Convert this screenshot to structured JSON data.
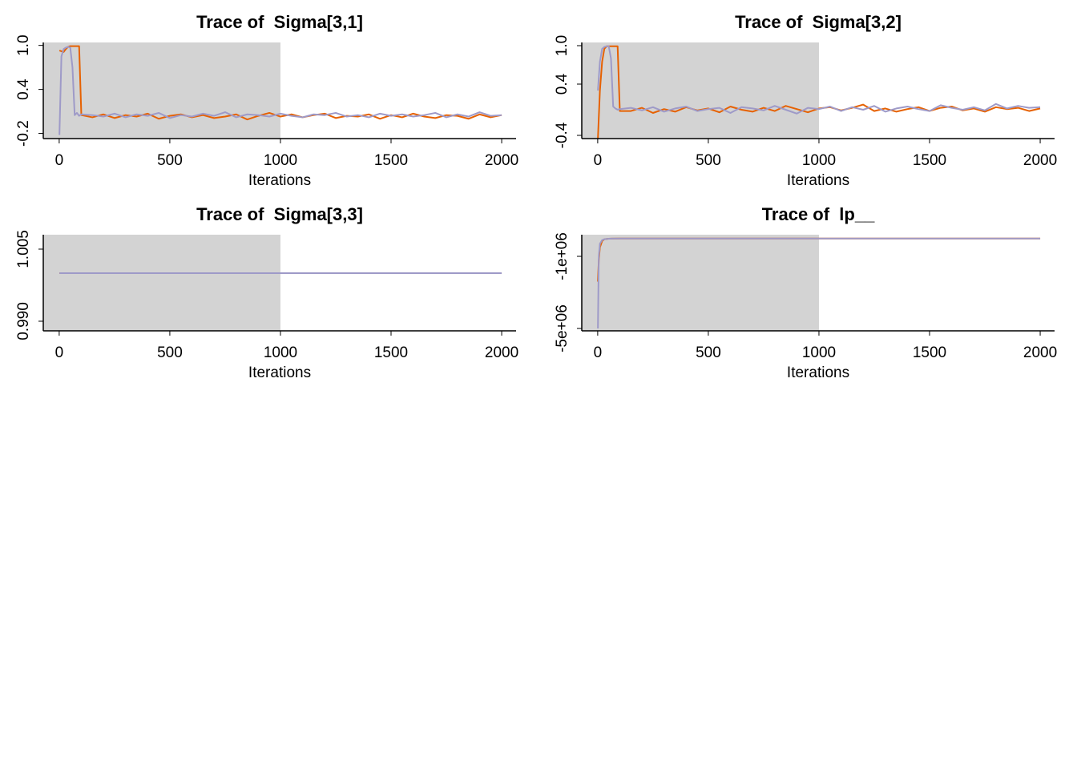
{
  "chart_data": [
    {
      "type": "line",
      "title": "Trace of  Sigma[3,1]",
      "xlabel": "Iterations",
      "x": [
        1,
        10,
        20,
        30,
        40,
        50,
        60,
        70,
        80,
        90,
        100,
        150,
        200,
        250,
        300,
        350,
        400,
        450,
        500,
        550,
        600,
        650,
        700,
        750,
        800,
        850,
        900,
        950,
        1000,
        1050,
        1100,
        1150,
        1200,
        1250,
        1300,
        1350,
        1400,
        1450,
        1500,
        1550,
        1600,
        1650,
        1700,
        1750,
        1800,
        1850,
        1900,
        1950,
        2000
      ],
      "xlim": [
        -72,
        2065
      ],
      "xticks": [
        0,
        500,
        1000,
        1500,
        2000
      ],
      "ylim": [
        -0.27,
        1.04
      ],
      "yticks": [
        -0.2,
        0.4,
        {
          "value": 1.0,
          "label": "1.0"
        }
      ],
      "warmup": 1000,
      "series": [
        {
          "color": "#e66101",
          "values": [
            0.93,
            0.92,
            0.91,
            0.95,
            0.98,
            0.99,
            0.99,
            0.99,
            0.99,
            0.99,
            0.05,
            0.02,
            0.06,
            0.01,
            0.05,
            0.03,
            0.07,
            0.0,
            0.04,
            0.06,
            0.02,
            0.05,
            0.01,
            0.03,
            0.06,
            -0.01,
            0.04,
            0.08,
            0.03,
            0.06,
            0.02,
            0.05,
            0.07,
            0.01,
            0.04,
            0.03,
            0.06,
            0.0,
            0.05,
            0.02,
            0.07,
            0.03,
            0.01,
            0.05,
            0.04,
            0.0,
            0.06,
            0.02,
            0.05
          ]
        },
        {
          "color": "#9e9ac8",
          "values": [
            -0.22,
            0.85,
            0.95,
            0.97,
            0.98,
            0.97,
            0.7,
            0.05,
            0.08,
            0.04,
            0.06,
            0.05,
            0.03,
            0.07,
            0.02,
            0.06,
            0.04,
            0.08,
            0.01,
            0.05,
            0.03,
            0.07,
            0.04,
            0.09,
            0.02,
            0.06,
            0.05,
            0.03,
            0.07,
            0.04,
            0.02,
            0.06,
            0.05,
            0.08,
            0.03,
            0.05,
            0.02,
            0.07,
            0.04,
            0.06,
            0.03,
            0.05,
            0.08,
            0.02,
            0.06,
            0.03,
            0.09,
            0.04,
            0.05
          ]
        }
      ]
    },
    {
      "type": "line",
      "title": "Trace of  Sigma[3,2]",
      "xlabel": "Iterations",
      "x": [
        1,
        10,
        20,
        30,
        40,
        50,
        60,
        70,
        80,
        90,
        100,
        150,
        200,
        250,
        300,
        350,
        400,
        450,
        500,
        550,
        600,
        650,
        700,
        750,
        800,
        850,
        900,
        950,
        1000,
        1050,
        1100,
        1150,
        1200,
        1250,
        1300,
        1350,
        1400,
        1450,
        1500,
        1550,
        1600,
        1650,
        1700,
        1750,
        1800,
        1850,
        1900,
        1950,
        2000
      ],
      "xlim": [
        -72,
        2065
      ],
      "xticks": [
        0,
        500,
        1000,
        1500,
        2000
      ],
      "ylim": [
        -0.45,
        1.05
      ],
      "yticks": [
        -0.4,
        0.4,
        {
          "value": 1.0,
          "label": "1.0"
        }
      ],
      "warmup": 1000,
      "series": [
        {
          "color": "#e66101",
          "values": [
            -0.45,
            0.3,
            0.75,
            0.95,
            0.99,
            0.99,
            0.99,
            0.99,
            0.99,
            0.99,
            -0.02,
            -0.02,
            0.03,
            -0.05,
            0.01,
            -0.03,
            0.04,
            -0.01,
            0.02,
            -0.04,
            0.05,
            0.0,
            -0.03,
            0.03,
            -0.02,
            0.06,
            0.01,
            -0.04,
            0.02,
            0.04,
            -0.01,
            0.03,
            0.08,
            -0.02,
            0.02,
            -0.03,
            0.01,
            0.04,
            -0.02,
            0.03,
            0.05,
            -0.01,
            0.02,
            -0.03,
            0.04,
            0.01,
            0.03,
            -0.02,
            0.02
          ]
        },
        {
          "color": "#9e9ac8",
          "values": [
            0.3,
            0.75,
            0.95,
            0.98,
            0.99,
            0.99,
            0.8,
            0.05,
            0.02,
            0.0,
            0.01,
            0.03,
            -0.01,
            0.04,
            -0.03,
            0.02,
            0.05,
            -0.02,
            0.01,
            0.03,
            -0.05,
            0.04,
            0.02,
            -0.01,
            0.06,
            0.0,
            -0.06,
            0.03,
            0.01,
            0.05,
            -0.02,
            0.04,
            0.0,
            0.06,
            -0.03,
            0.02,
            0.05,
            0.01,
            -0.02,
            0.07,
            0.03,
            0.0,
            0.04,
            -0.01,
            0.09,
            0.02,
            0.06,
            0.03,
            0.04
          ]
        }
      ]
    },
    {
      "type": "line",
      "title": "Trace of  Sigma[3,3]",
      "xlabel": "Iterations",
      "x": [
        1,
        2000
      ],
      "xlim": [
        -72,
        2065
      ],
      "xticks": [
        0,
        500,
        1000,
        1500,
        2000
      ],
      "ylim": [
        0.988,
        1.008
      ],
      "yticks": [
        {
          "value": 0.99,
          "label": "0.990"
        },
        1.005
      ],
      "warmup": 1000,
      "series": [
        {
          "color": "#e66101",
          "values": [
            1,
            1
          ]
        },
        {
          "color": "#9e9ac8",
          "values": [
            1,
            1
          ]
        }
      ]
    },
    {
      "type": "line",
      "title": "Trace of  lp__",
      "xlabel": "Iterations",
      "x": [
        1,
        5,
        10,
        20,
        30,
        50,
        100,
        2000
      ],
      "xlim": [
        -72,
        2065
      ],
      "xticks": [
        0,
        500,
        1000,
        1500,
        2000
      ],
      "ylim": [
        -5130000,
        200000
      ],
      "yticks": [
        {
          "value": -5000000,
          "label": "-5e+06"
        },
        {
          "value": -1000000,
          "label": "-1e+06"
        }
      ],
      "warmup": 1000,
      "series": [
        {
          "color": "#e66101",
          "values": [
            -2400000,
            -1200000,
            -500000,
            -150000,
            -50000,
            -20000,
            -10000,
            -10000
          ]
        },
        {
          "color": "#9e9ac8",
          "values": [
            -5000000,
            -1000000,
            -300000,
            -100000,
            -50000,
            -20000,
            -10000,
            -10000
          ]
        }
      ]
    }
  ]
}
